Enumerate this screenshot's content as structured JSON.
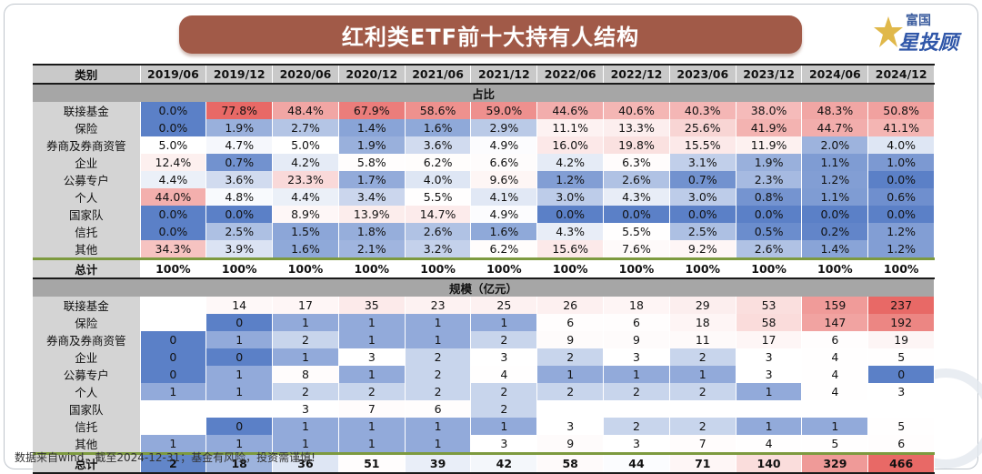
{
  "title": "红利类ETF前十大持有人结构",
  "logo": {
    "top": "富国",
    "bottom": "星投顾"
  },
  "footnote": "数据来自wind，截至2024-12-31；基金有风险，投资需谨慎!",
  "chart_data": {
    "type": "table",
    "header_label": "类别",
    "periods": [
      "2019/06",
      "2019/12",
      "2020/06",
      "2020/12",
      "2021/06",
      "2021/12",
      "2022/06",
      "2022/12",
      "2023/06",
      "2023/12",
      "2024/06",
      "2024/12"
    ],
    "sections": [
      {
        "title": "占比",
        "unit": "%",
        "rows": [
          {
            "label": "联接基金",
            "values": [
              "0.0%",
              "77.8%",
              "48.4%",
              "67.9%",
              "58.6%",
              "59.0%",
              "44.6%",
              "40.6%",
              "40.3%",
              "38.0%",
              "48.3%",
              "50.8%"
            ]
          },
          {
            "label": "保险",
            "values": [
              "0.0%",
              "1.9%",
              "2.7%",
              "1.4%",
              "1.6%",
              "2.9%",
              "11.1%",
              "13.3%",
              "25.6%",
              "41.9%",
              "44.7%",
              "41.1%"
            ]
          },
          {
            "label": "券商及券商资管",
            "values": [
              "5.0%",
              "4.7%",
              "5.0%",
              "1.9%",
              "3.6%",
              "4.9%",
              "16.0%",
              "19.8%",
              "15.5%",
              "11.9%",
              "2.0%",
              "4.0%"
            ]
          },
          {
            "label": "企业",
            "values": [
              "12.4%",
              "0.7%",
              "4.2%",
              "5.8%",
              "6.2%",
              "6.6%",
              "4.2%",
              "6.3%",
              "3.1%",
              "1.9%",
              "1.1%",
              "1.0%"
            ]
          },
          {
            "label": "公募专户",
            "values": [
              "4.4%",
              "3.6%",
              "23.3%",
              "1.7%",
              "4.0%",
              "9.6%",
              "1.2%",
              "2.6%",
              "0.7%",
              "2.3%",
              "1.2%",
              "0.0%"
            ]
          },
          {
            "label": "个人",
            "values": [
              "44.0%",
              "4.8%",
              "4.4%",
              "3.4%",
              "5.5%",
              "4.1%",
              "3.0%",
              "4.3%",
              "3.0%",
              "0.8%",
              "1.1%",
              "0.6%"
            ]
          },
          {
            "label": "国家队",
            "values": [
              "0.0%",
              "0.0%",
              "8.9%",
              "13.9%",
              "14.7%",
              "4.9%",
              "0.0%",
              "0.0%",
              "0.0%",
              "0.0%",
              "0.0%",
              "0.0%"
            ]
          },
          {
            "label": "信托",
            "values": [
              "0.0%",
              "2.5%",
              "1.5%",
              "1.8%",
              "2.6%",
              "1.6%",
              "4.3%",
              "5.5%",
              "2.5%",
              "0.5%",
              "0.2%",
              "1.2%"
            ]
          },
          {
            "label": "其他",
            "values": [
              "34.3%",
              "3.9%",
              "1.6%",
              "2.1%",
              "3.2%",
              "6.2%",
              "15.6%",
              "7.6%",
              "9.2%",
              "2.6%",
              "1.4%",
              "1.2%"
            ]
          }
        ],
        "total": {
          "label": "总计",
          "values": [
            "100%",
            "100%",
            "100%",
            "100%",
            "100%",
            "100%",
            "100%",
            "100%",
            "100%",
            "100%",
            "100%",
            "100%"
          ]
        }
      },
      {
        "title": "规模（亿元）",
        "unit": "亿元",
        "rows": [
          {
            "label": "联接基金",
            "values": [
              "",
              "14",
              "17",
              "35",
              "23",
              "25",
              "26",
              "18",
              "29",
              "53",
              "159",
              "237"
            ]
          },
          {
            "label": "保险",
            "values": [
              "",
              "0",
              "1",
              "1",
              "1",
              "1",
              "6",
              "6",
              "18",
              "58",
              "147",
              "192"
            ]
          },
          {
            "label": "券商及券商资管",
            "values": [
              "0",
              "1",
              "2",
              "1",
              "1",
              "2",
              "9",
              "9",
              "11",
              "17",
              "6",
              "19"
            ]
          },
          {
            "label": "企业",
            "values": [
              "0",
              "0",
              "1",
              "3",
              "2",
              "3",
              "2",
              "3",
              "2",
              "3",
              "4",
              "5"
            ]
          },
          {
            "label": "公募专户",
            "values": [
              "0",
              "1",
              "8",
              "1",
              "2",
              "4",
              "1",
              "1",
              "1",
              "3",
              "4",
              "0"
            ]
          },
          {
            "label": "个人",
            "values": [
              "1",
              "1",
              "2",
              "2",
              "2",
              "2",
              "2",
              "2",
              "2",
              "1",
              "4",
              "3"
            ]
          },
          {
            "label": "国家队",
            "values": [
              "",
              "",
              "3",
              "7",
              "6",
              "2",
              "",
              "",
              "",
              "",
              "",
              ""
            ]
          },
          {
            "label": "信托",
            "values": [
              "",
              "0",
              "1",
              "1",
              "1",
              "1",
              "3",
              "2",
              "2",
              "1",
              "1",
              "5"
            ]
          },
          {
            "label": "其他",
            "values": [
              "1",
              "1",
              "1",
              "1",
              "1",
              "3",
              "9",
              "3",
              "7",
              "4",
              "5",
              "6"
            ]
          }
        ],
        "total": {
          "label": "总计",
          "values": [
            "2",
            "18",
            "36",
            "51",
            "39",
            "42",
            "58",
            "44",
            "71",
            "140",
            "329",
            "466"
          ]
        }
      }
    ]
  }
}
